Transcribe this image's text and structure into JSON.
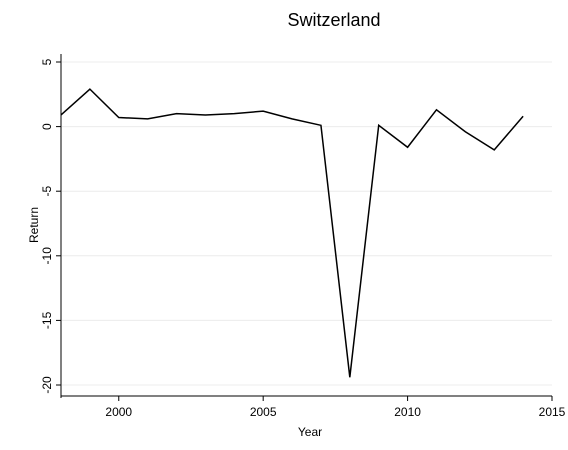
{
  "chart_data": {
    "type": "line",
    "title": "Switzerland",
    "xlabel": "Year",
    "ylabel": "Return",
    "xlim": [
      1998,
      2015
    ],
    "ylim": [
      -20,
      5
    ],
    "xticks": [
      2000,
      2005,
      2010,
      2015
    ],
    "yticks": [
      5,
      0,
      -5,
      -10,
      -15,
      -20
    ],
    "grid": true,
    "legend": "none",
    "series": [
      {
        "x": [
          1998,
          1999,
          2000,
          2001,
          2002,
          2003,
          2004,
          2005,
          2006,
          2007,
          2008,
          2009,
          2010,
          2011,
          2012,
          2013,
          2014
        ],
        "y": [
          0.9,
          2.9,
          0.7,
          0.6,
          1.0,
          0.9,
          1.0,
          1.2,
          0.6,
          0.1,
          -19.4,
          0.1,
          -1.6,
          1.3,
          -0.4,
          -1.8,
          0.8
        ],
        "color": "#000000"
      }
    ]
  }
}
